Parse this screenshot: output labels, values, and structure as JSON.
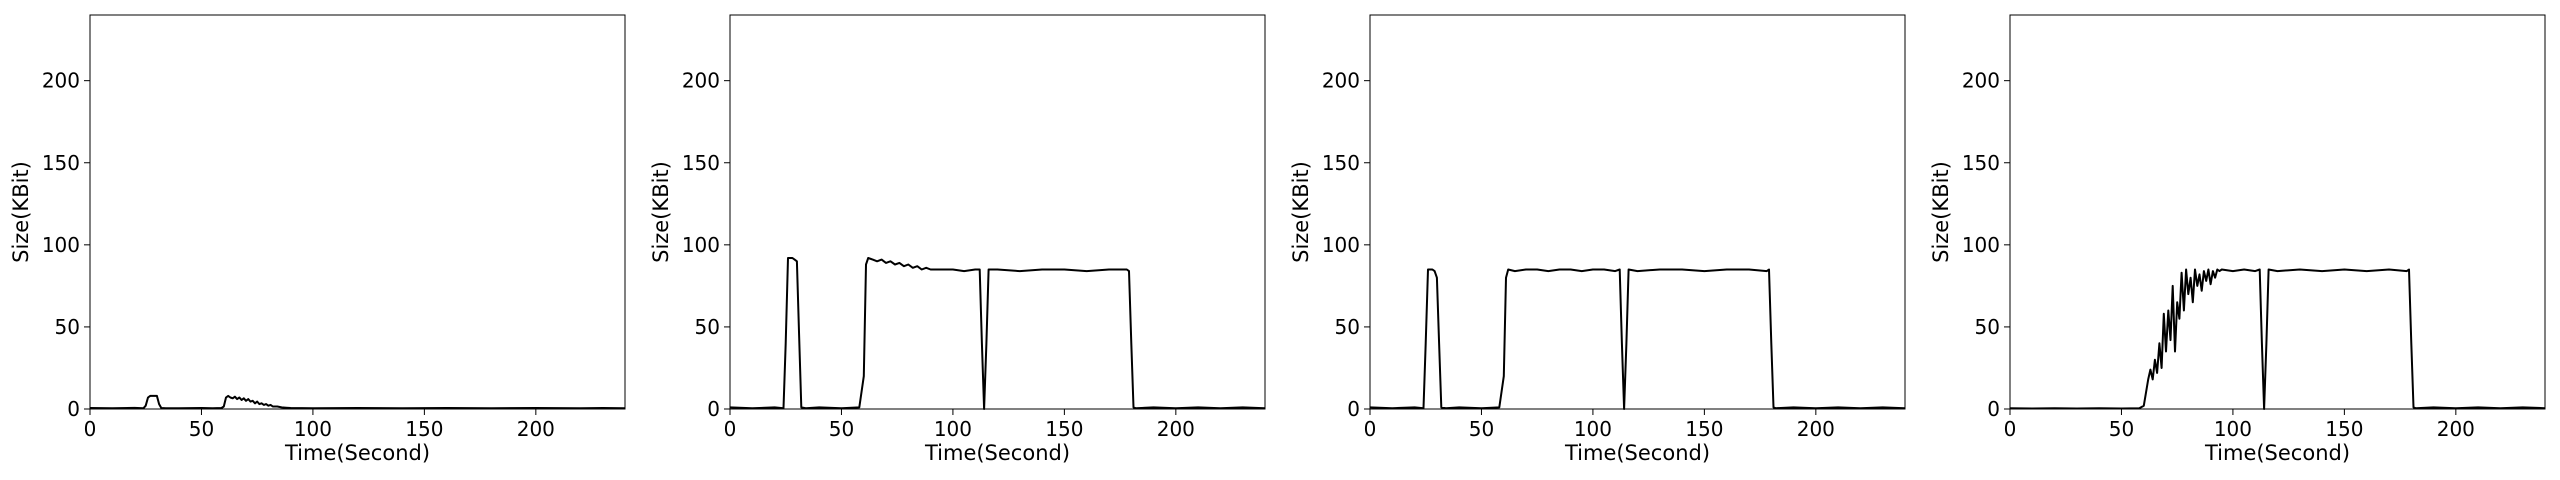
{
  "figure": {
    "background": "#ffffff",
    "line_color": "#000000"
  },
  "chart_data": [
    {
      "type": "line",
      "title": "",
      "xlabel": "Time(Second)",
      "ylabel": "Size(KBit)",
      "xlim": [
        0,
        240
      ],
      "ylim": [
        0,
        240
      ],
      "xticks": [
        0,
        50,
        100,
        150,
        200
      ],
      "yticks": [
        0,
        50,
        100,
        150,
        200
      ],
      "grid": false,
      "series": [
        {
          "color": "#000000",
          "x": [
            0,
            10,
            20,
            24,
            25,
            26,
            27,
            29,
            30,
            31,
            32,
            34,
            40,
            50,
            55,
            59,
            60,
            61,
            62,
            63,
            64,
            65,
            66,
            67,
            68,
            69,
            70,
            71,
            72,
            73,
            74,
            75,
            76,
            77,
            78,
            79,
            80,
            81,
            82,
            84,
            86,
            88,
            90,
            100,
            120,
            140,
            160,
            180,
            200,
            220,
            230,
            240
          ],
          "y": [
            0.6,
            0.4,
            0.7,
            0.5,
            2,
            7,
            8,
            8,
            8,
            3,
            0.6,
            0.5,
            0.4,
            0.6,
            0.5,
            0.6,
            1.5,
            7,
            8,
            7,
            6.5,
            7.5,
            6,
            7,
            5.5,
            6.5,
            5,
            6,
            4.5,
            5,
            3.5,
            4.5,
            3,
            3.5,
            2.5,
            3,
            2,
            2.5,
            1.5,
            1.5,
            1,
            0.8,
            0.6,
            0.5,
            0.6,
            0.5,
            0.6,
            0.5,
            0.6,
            0.5,
            0.6,
            0.5
          ]
        }
      ]
    },
    {
      "type": "line",
      "title": "",
      "xlabel": "Time(Second)",
      "ylabel": "Size(KBit)",
      "xlim": [
        0,
        240
      ],
      "ylim": [
        0,
        240
      ],
      "xticks": [
        0,
        50,
        100,
        150,
        200
      ],
      "yticks": [
        0,
        50,
        100,
        150,
        200
      ],
      "grid": false,
      "series": [
        {
          "color": "#000000",
          "x": [
            0,
            10,
            20,
            24,
            25,
            26,
            28,
            29,
            30,
            31,
            32,
            34,
            40,
            50,
            58,
            60,
            61,
            62,
            64,
            66,
            68,
            70,
            72,
            74,
            76,
            78,
            80,
            82,
            84,
            86,
            88,
            90,
            95,
            100,
            105,
            110,
            112,
            113,
            114,
            115,
            116,
            120,
            130,
            140,
            150,
            160,
            170,
            178,
            179,
            180,
            181,
            182,
            190,
            200,
            210,
            220,
            230,
            240
          ],
          "y": [
            1,
            0.5,
            1,
            0.5,
            40,
            92,
            92,
            91,
            90,
            45,
            1,
            0.5,
            1,
            0.5,
            1,
            20,
            88,
            92,
            91,
            90,
            91,
            89,
            90,
            88,
            89,
            87,
            88,
            86,
            87,
            85,
            86,
            85,
            85,
            85,
            84,
            85,
            85,
            40,
            0,
            40,
            85,
            85,
            84,
            85,
            85,
            84,
            85,
            85,
            84,
            40,
            1,
            0.5,
            1,
            0.5,
            1,
            0.5,
            1,
            0.5
          ]
        }
      ]
    },
    {
      "type": "line",
      "title": "",
      "xlabel": "Time(Second)",
      "ylabel": "Size(KBit)",
      "xlim": [
        0,
        240
      ],
      "ylim": [
        0,
        240
      ],
      "xticks": [
        0,
        50,
        100,
        150,
        200
      ],
      "yticks": [
        0,
        50,
        100,
        150,
        200
      ],
      "grid": false,
      "series": [
        {
          "color": "#000000",
          "x": [
            0,
            10,
            20,
            24,
            25,
            26,
            28,
            29,
            30,
            31,
            32,
            34,
            40,
            50,
            58,
            60,
            61,
            62,
            65,
            70,
            75,
            80,
            85,
            90,
            95,
            100,
            105,
            110,
            112,
            113,
            114,
            115,
            116,
            120,
            130,
            140,
            150,
            160,
            170,
            178,
            179,
            180,
            181,
            182,
            190,
            200,
            210,
            220,
            230,
            240
          ],
          "y": [
            1,
            0.5,
            1,
            0.5,
            40,
            85,
            85,
            84,
            80,
            40,
            1,
            0.5,
            1,
            0.5,
            1,
            20,
            80,
            85,
            84,
            85,
            85,
            84,
            85,
            85,
            84,
            85,
            85,
            84,
            85,
            40,
            0,
            40,
            85,
            84,
            85,
            85,
            84,
            85,
            85,
            84,
            85,
            40,
            1,
            0.5,
            1,
            0.5,
            1,
            0.5,
            1,
            0.5
          ]
        }
      ]
    },
    {
      "type": "line",
      "title": "",
      "xlabel": "Time(Second)",
      "ylabel": "Size(KBit)",
      "xlim": [
        0,
        240
      ],
      "ylim": [
        0,
        240
      ],
      "xticks": [
        0,
        50,
        100,
        150,
        200
      ],
      "yticks": [
        0,
        50,
        100,
        150,
        200
      ],
      "grid": false,
      "series": [
        {
          "color": "#000000",
          "x": [
            0,
            10,
            20,
            30,
            40,
            50,
            58,
            60,
            61,
            62,
            63,
            64,
            65,
            66,
            67,
            68,
            69,
            70,
            71,
            72,
            73,
            74,
            75,
            76,
            77,
            78,
            79,
            80,
            81,
            82,
            83,
            84,
            85,
            86,
            87,
            88,
            89,
            90,
            91,
            92,
            93,
            94,
            95,
            100,
            105,
            110,
            112,
            113,
            114,
            115,
            116,
            120,
            130,
            140,
            150,
            160,
            170,
            178,
            179,
            180,
            181,
            182,
            190,
            200,
            210,
            220,
            230,
            240
          ],
          "y": [
            0.5,
            0.3,
            0.5,
            0.3,
            0.5,
            0.3,
            0.5,
            2,
            10,
            18,
            24,
            18,
            30,
            22,
            40,
            25,
            58,
            35,
            60,
            42,
            75,
            35,
            65,
            55,
            83,
            60,
            85,
            70,
            80,
            65,
            85,
            75,
            82,
            72,
            84,
            78,
            85,
            76,
            84,
            80,
            85,
            84,
            85,
            84,
            85,
            84,
            85,
            40,
            0,
            40,
            85,
            84,
            85,
            84,
            85,
            84,
            85,
            84,
            85,
            40,
            1,
            0.5,
            1,
            0.5,
            1,
            0.5,
            1,
            0.5
          ]
        }
      ]
    }
  ]
}
